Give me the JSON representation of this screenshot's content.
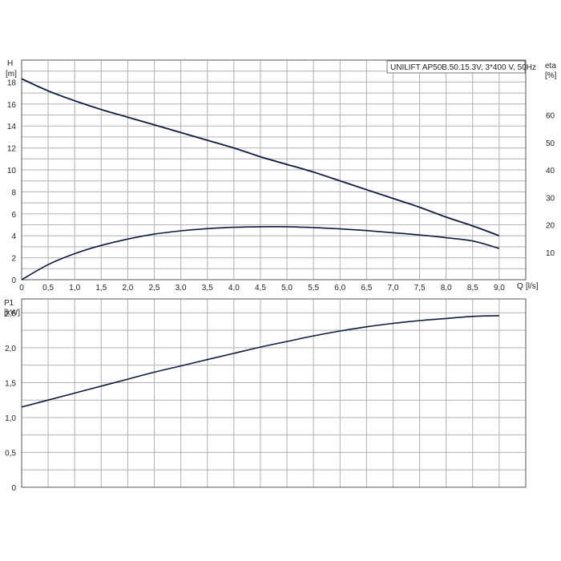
{
  "chart_data": [
    {
      "type": "line",
      "title": "UNILIFT AP50B.50.15.3V, 3*400 V, 50Hz",
      "ylabel": "H",
      "ylabel_unit": "[m]",
      "y2label": "eta",
      "y2label_unit": "[%]",
      "xlabel": "Q",
      "xlabel_unit": "[l/s]",
      "xlim": [
        0,
        9.5
      ],
      "ylim": [
        0,
        20
      ],
      "y2lim": [
        0,
        80
      ],
      "grid": true,
      "xticks": [
        "0",
        "0,5",
        "1,0",
        "1,5",
        "2,0",
        "2,5",
        "3,0",
        "3,5",
        "4,0",
        "4,5",
        "5,0",
        "5,5",
        "6,0",
        "6,5",
        "7,0",
        "7,5",
        "8,0",
        "8,5",
        "9,0"
      ],
      "yticks": [
        "0",
        "2",
        "4",
        "6",
        "8",
        "10",
        "12",
        "14",
        "16",
        "18"
      ],
      "y2ticks": [
        "10",
        "20",
        "30",
        "40",
        "50",
        "60"
      ],
      "series": [
        {
          "axis": "left",
          "x": [
            0,
            0.5,
            1,
            1.5,
            2,
            2.5,
            3,
            3.5,
            4,
            4.5,
            5,
            5.5,
            6,
            6.5,
            7,
            7.5,
            8,
            8.5,
            9
          ],
          "values": [
            18.3,
            17.2,
            16.3,
            15.5,
            14.8,
            14.1,
            13.4,
            12.7,
            12.0,
            11.2,
            10.5,
            9.8,
            9.0,
            8.2,
            7.4,
            6.6,
            5.7,
            4.9,
            4.0
          ]
        },
        {
          "axis": "right",
          "x": [
            0,
            0.5,
            1,
            1.5,
            2,
            2.5,
            3,
            3.5,
            4,
            4.5,
            5,
            5.5,
            6,
            6.5,
            7,
            7.5,
            8,
            8.5,
            9
          ],
          "values": [
            0,
            5.5,
            9.5,
            12.5,
            14.8,
            16.6,
            17.8,
            18.6,
            19.1,
            19.3,
            19.3,
            19.0,
            18.5,
            17.9,
            17.1,
            16.3,
            15.3,
            14.1,
            11.4
          ]
        }
      ]
    },
    {
      "type": "line",
      "ylabel": "P1",
      "ylabel_unit": "[kW]",
      "xlim": [
        0,
        9.5
      ],
      "ylim": [
        0,
        2.7
      ],
      "grid": true,
      "yticks": [
        "0",
        "0,5",
        "1,0",
        "1,5",
        "2,0",
        "2,5"
      ],
      "series": [
        {
          "x": [
            0,
            0.5,
            1,
            1.5,
            2,
            2.5,
            3,
            3.5,
            4,
            4.5,
            5,
            5.5,
            6,
            6.5,
            7,
            7.5,
            8,
            8.5,
            9
          ],
          "values": [
            1.15,
            1.25,
            1.35,
            1.45,
            1.55,
            1.65,
            1.74,
            1.83,
            1.92,
            2.01,
            2.09,
            2.17,
            2.24,
            2.3,
            2.35,
            2.39,
            2.42,
            2.45,
            2.46
          ]
        }
      ]
    }
  ],
  "colors": {
    "curve": "#0d1a3d",
    "grid": "#b0b0b0",
    "frame": "#555555"
  }
}
